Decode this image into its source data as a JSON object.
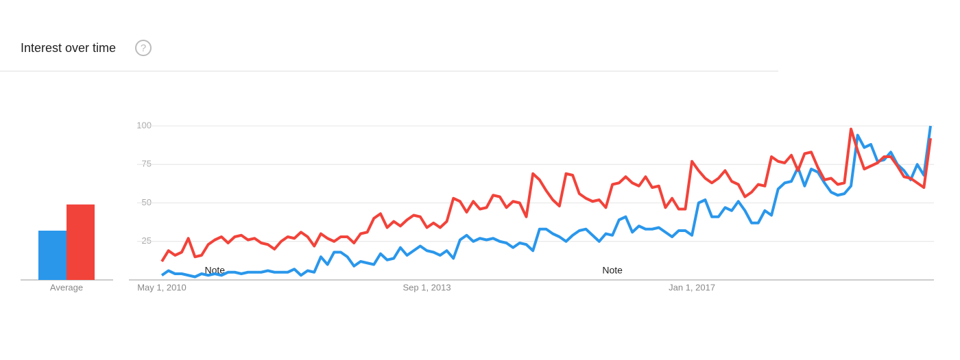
{
  "chart_data": {
    "type": "line",
    "title": "Interest over time",
    "average_label": "Average",
    "categories": [
      "May 1, 2010",
      null,
      null,
      null,
      null,
      null,
      null,
      null,
      null,
      null,
      null,
      null,
      null,
      null,
      null,
      null,
      null,
      null,
      null,
      null,
      null,
      null,
      null,
      null,
      null,
      null,
      null,
      null,
      null,
      null,
      null,
      null,
      null,
      null,
      null,
      null,
      null,
      null,
      null,
      null,
      "Sep 1, 2013",
      null,
      null,
      null,
      null,
      null,
      null,
      null,
      null,
      null,
      null,
      null,
      null,
      null,
      null,
      null,
      null,
      null,
      null,
      null,
      null,
      null,
      null,
      null,
      null,
      null,
      null,
      null,
      null,
      null,
      null,
      null,
      null,
      null,
      null,
      null,
      null,
      null,
      null,
      null,
      "Jan 1, 2017",
      null,
      null,
      null,
      null,
      null,
      null,
      null,
      null,
      null,
      null,
      null,
      null,
      null,
      null,
      null,
      null,
      null,
      null,
      null,
      null,
      null,
      null,
      null,
      null,
      null,
      null,
      null,
      null,
      null,
      null,
      null,
      null,
      null,
      null,
      null,
      null
    ],
    "series": [
      {
        "color": "#2a97eb",
        "average": 32,
        "values": [
          3,
          6,
          4,
          4,
          3,
          2,
          4,
          3,
          4,
          3,
          5,
          5,
          4,
          5,
          5,
          5,
          6,
          5,
          5,
          5,
          7,
          3,
          6,
          5,
          15,
          10,
          18,
          18,
          15,
          9,
          12,
          11,
          10,
          17,
          13,
          14,
          21,
          16,
          19,
          22,
          19,
          18,
          16,
          19,
          14,
          26,
          29,
          25,
          27,
          26,
          27,
          25,
          24,
          21,
          24,
          23,
          19,
          33,
          33,
          30,
          28,
          25,
          29,
          32,
          33,
          29,
          25,
          30,
          29,
          39,
          41,
          31,
          35,
          33,
          33,
          34,
          31,
          28,
          32,
          32,
          29,
          50,
          52,
          41,
          41,
          47,
          45,
          51,
          45,
          37,
          37,
          45,
          42,
          59,
          63,
          64,
          73,
          61,
          72,
          70,
          63,
          57,
          55,
          56,
          61,
          94,
          86,
          88,
          77,
          78,
          83,
          75,
          71,
          65,
          75,
          68,
          100
        ]
      },
      {
        "color": "#f2433a",
        "average": 49,
        "values": [
          12,
          19,
          16,
          18,
          27,
          15,
          16,
          23,
          26,
          28,
          24,
          28,
          29,
          26,
          27,
          24,
          23,
          20,
          25,
          28,
          27,
          31,
          28,
          22,
          30,
          27,
          25,
          28,
          28,
          24,
          30,
          31,
          40,
          43,
          34,
          38,
          35,
          39,
          42,
          41,
          34,
          37,
          34,
          38,
          53,
          51,
          44,
          51,
          46,
          47,
          55,
          54,
          47,
          51,
          50,
          41,
          69,
          65,
          58,
          52,
          48,
          69,
          68,
          56,
          53,
          51,
          52,
          47,
          62,
          63,
          67,
          63,
          61,
          67,
          60,
          61,
          47,
          53,
          46,
          46,
          77,
          71,
          66,
          63,
          66,
          71,
          64,
          62,
          54,
          57,
          62,
          61,
          80,
          77,
          76,
          81,
          71,
          82,
          83,
          73,
          65,
          66,
          62,
          63,
          98,
          84,
          72,
          74,
          76,
          80,
          80,
          74,
          67,
          66,
          63,
          60,
          92
        ]
      }
    ],
    "annotations": [
      {
        "text": "Note",
        "at": 8
      },
      {
        "text": "Note",
        "at": 68
      }
    ],
    "ylim": [
      0,
      100
    ],
    "yticks": [
      25,
      50,
      75,
      100
    ],
    "grid": true
  }
}
